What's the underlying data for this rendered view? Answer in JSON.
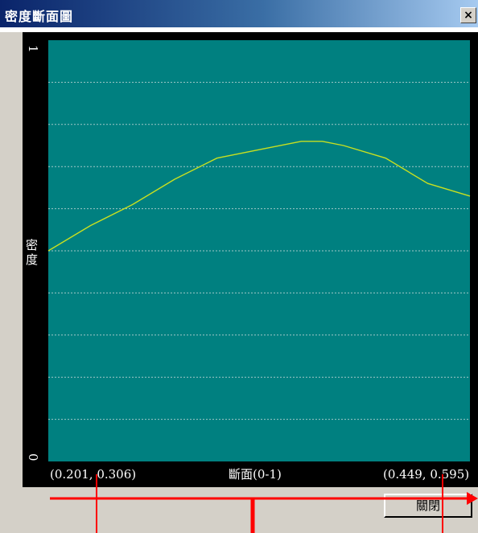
{
  "window": {
    "title": "密度斷面圖",
    "close_glyph": "×"
  },
  "chart_data": {
    "type": "line",
    "ylabel": "密度",
    "xlabel": "斷面(0-1)",
    "ylim": [
      0,
      1
    ],
    "xlim": [
      0,
      1
    ],
    "ytick_labels": [
      "1",
      "0"
    ],
    "grid": true,
    "background_color": "#008080",
    "line_color": "#c8e020",
    "start_point_label": "(0.201, 0.306)",
    "end_point_label": "(0.449, 0.595)",
    "series": [
      {
        "x": [
          0.0,
          0.1,
          0.2,
          0.3,
          0.4,
          0.5,
          0.6,
          0.65,
          0.7,
          0.8,
          0.9,
          1.0
        ],
        "y": [
          0.5,
          0.56,
          0.61,
          0.67,
          0.72,
          0.74,
          0.76,
          0.76,
          0.75,
          0.72,
          0.66,
          0.63
        ]
      }
    ]
  },
  "buttons": {
    "close_label": "關閉"
  },
  "annotation": {
    "color": "#ff0000"
  }
}
